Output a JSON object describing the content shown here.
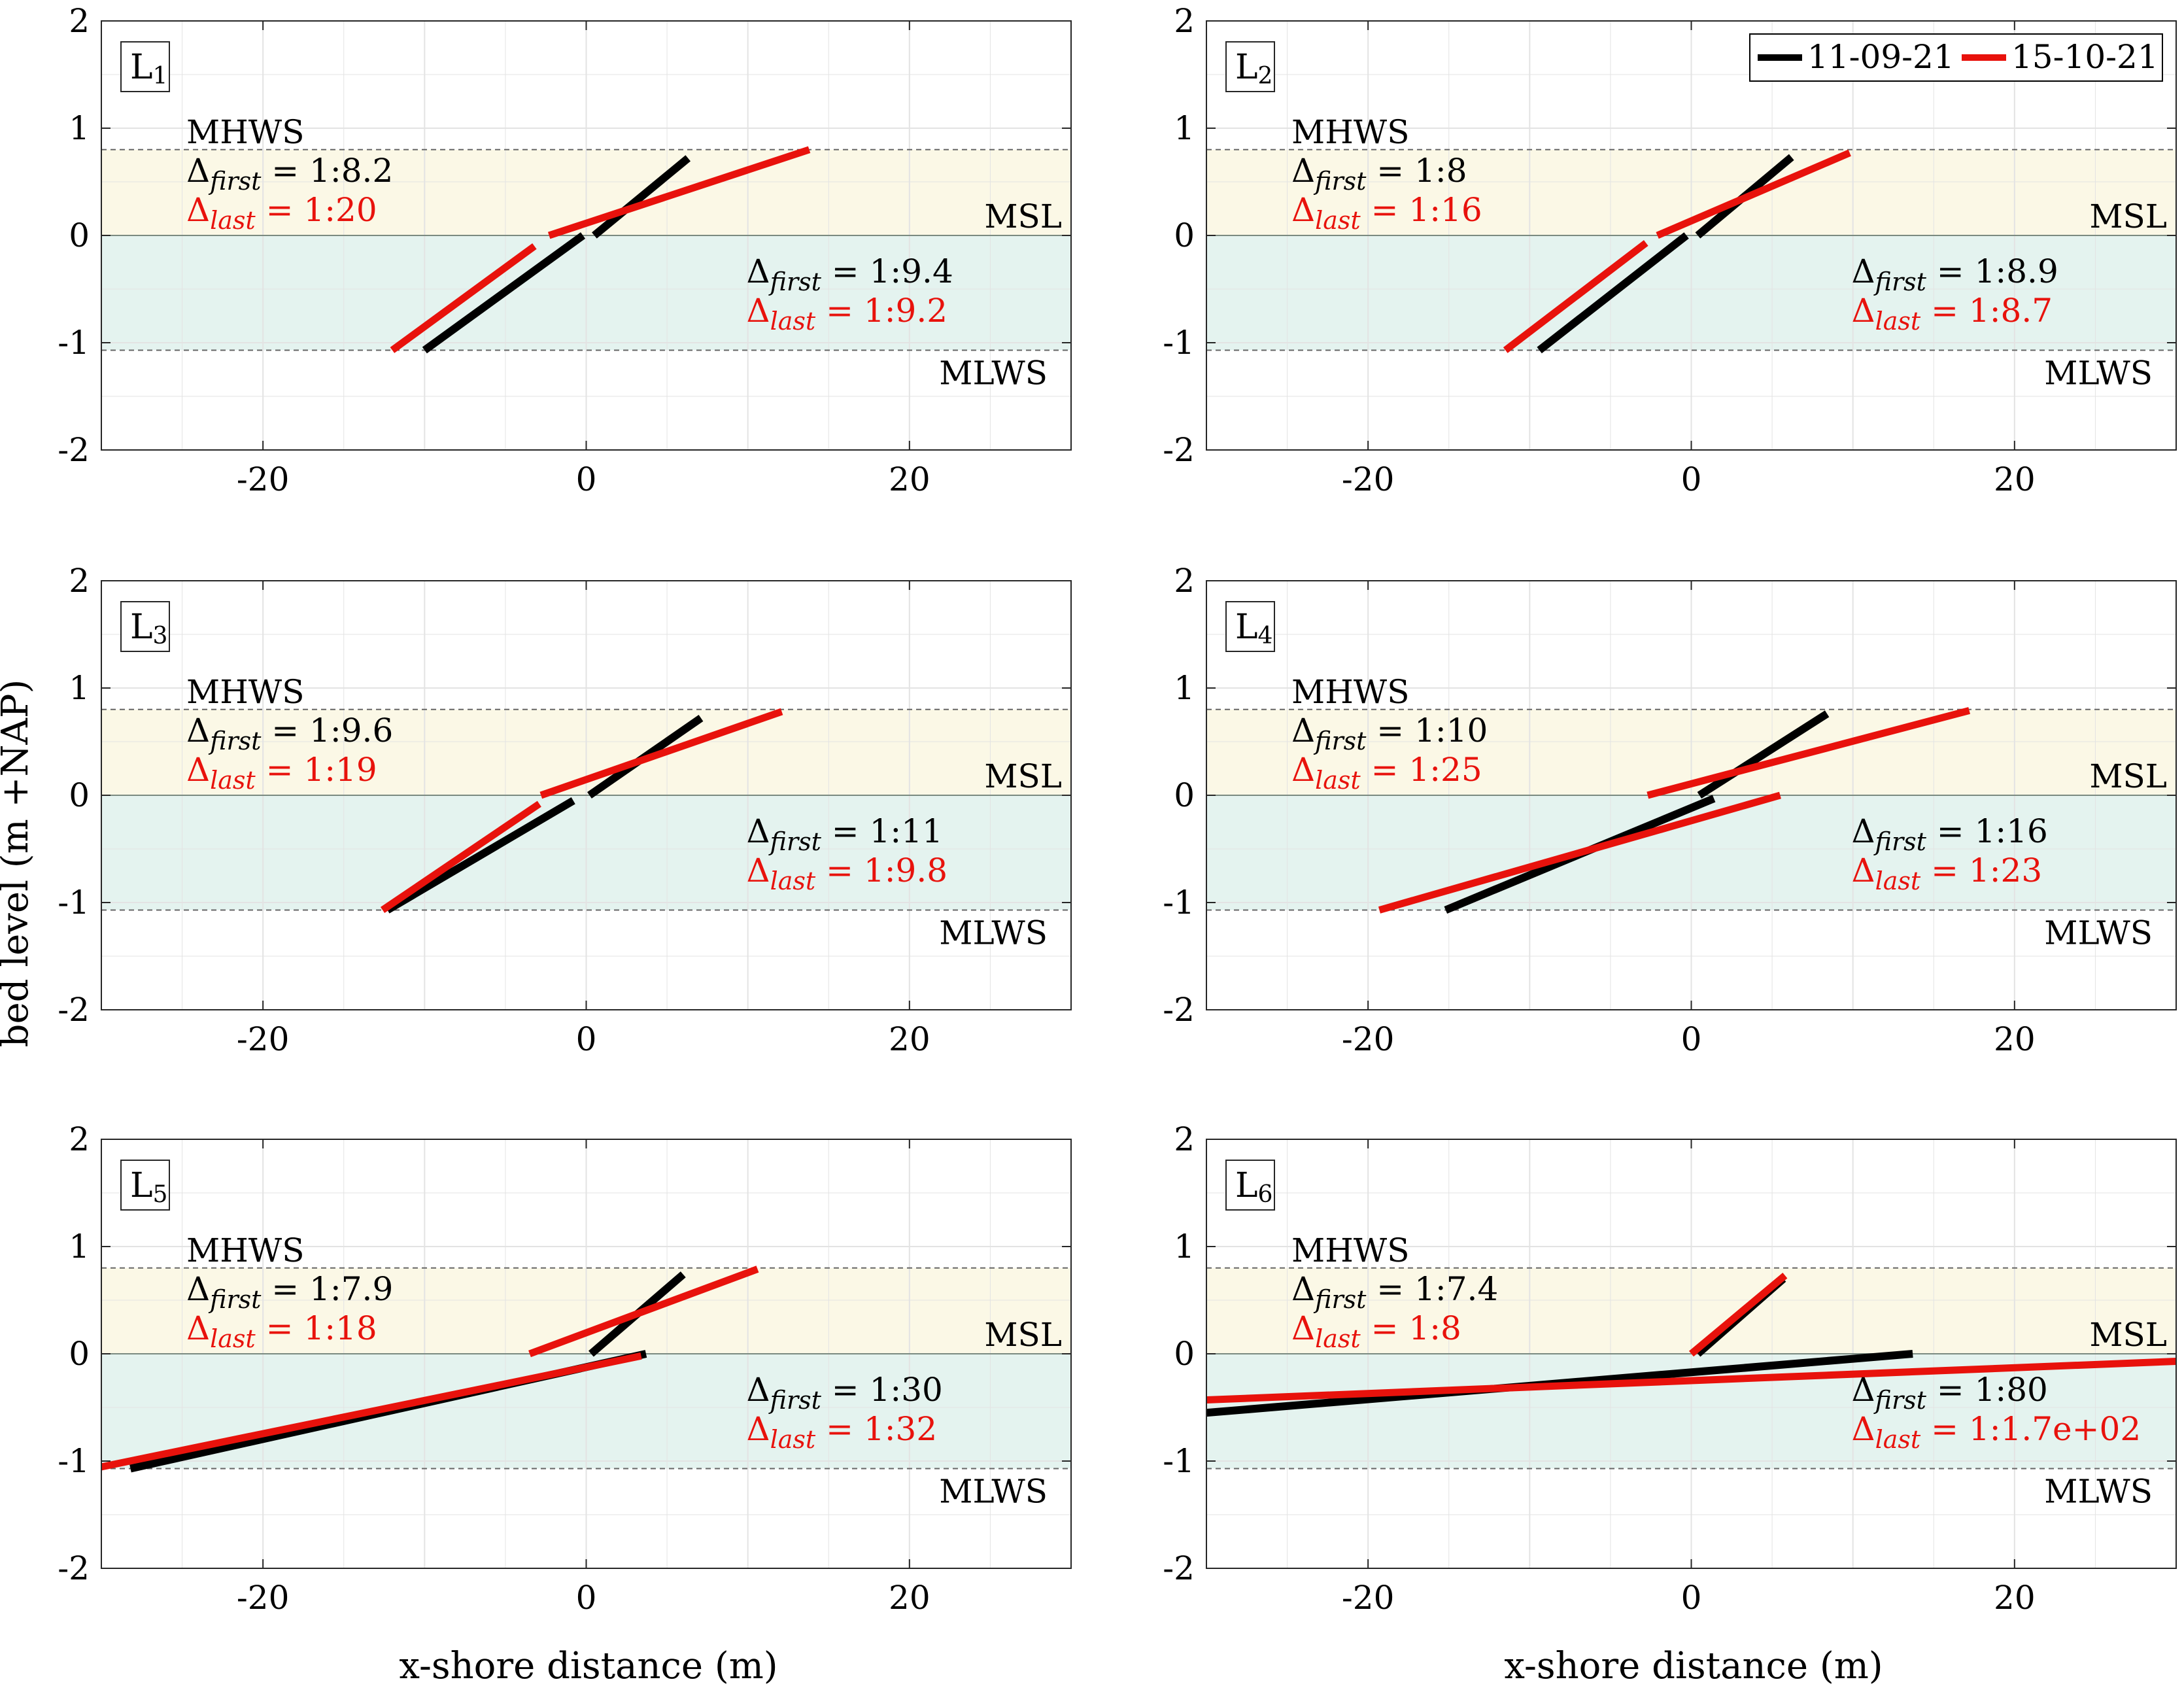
{
  "chart_data": {
    "type": "line",
    "xlabel": "x-shore distance (m)",
    "ylabel": "bed level (m +NAP)",
    "xlim": [
      -30,
      30
    ],
    "ylim": [
      -2,
      2
    ],
    "xticks": [
      -20,
      0,
      20
    ],
    "yticks": [
      -2,
      -1,
      0,
      1,
      2
    ],
    "grid": true,
    "legend": {
      "placement": "top-right of panel L2",
      "entries": [
        {
          "label": "11-09-21",
          "color": "#000000"
        },
        {
          "label": "15-10-21",
          "color": "#e8120c"
        }
      ]
    },
    "reference_levels": {
      "MHWS": {
        "label": "MHWS",
        "value": 0.8
      },
      "MSL": {
        "label": "MSL",
        "value": 0
      },
      "MLWS": {
        "label": "MLWS",
        "value": -1.07
      }
    },
    "colors": {
      "first": "#000000",
      "last": "#e8120c",
      "upper_band": "#fbf8e6",
      "lower_band": "#e4f3ef",
      "grid": "#e3e3e3"
    },
    "panels": [
      {
        "label": "L",
        "sub": "1",
        "upper": {
          "first": "1:8.2",
          "last": "1:20"
        },
        "lower": {
          "first": "1:9.4",
          "last": "1:9.2"
        },
        "series": [
          {
            "date": "11-09-21",
            "segment": "upper",
            "x": [
              0.5,
              6.3
            ],
            "y": [
              0.0,
              0.72
            ]
          },
          {
            "date": "15-10-21",
            "segment": "upper",
            "x": [
              -2.3,
              13.8
            ],
            "y": [
              0.0,
              0.8
            ]
          },
          {
            "date": "11-09-21",
            "segment": "lower",
            "x": [
              -10,
              -0.2
            ],
            "y": [
              -1.07,
              0.0
            ]
          },
          {
            "date": "15-10-21",
            "segment": "lower",
            "x": [
              -12,
              -3.2
            ],
            "y": [
              -1.07,
              -0.1
            ]
          }
        ]
      },
      {
        "label": "L",
        "sub": "2",
        "upper": {
          "first": "1:8",
          "last": "1:16"
        },
        "lower": {
          "first": "1:8.9",
          "last": "1:8.7"
        },
        "series": [
          {
            "date": "11-09-21",
            "segment": "upper",
            "x": [
              0.4,
              6.2
            ],
            "y": [
              0.0,
              0.73
            ]
          },
          {
            "date": "15-10-21",
            "segment": "upper",
            "x": [
              -2.1,
              9.8
            ],
            "y": [
              0.0,
              0.77
            ]
          },
          {
            "date": "11-09-21",
            "segment": "lower",
            "x": [
              -9.4,
              -0.3
            ],
            "y": [
              -1.07,
              0.0
            ]
          },
          {
            "date": "15-10-21",
            "segment": "lower",
            "x": [
              -11.5,
              -2.8
            ],
            "y": [
              -1.07,
              -0.07
            ]
          }
        ]
      },
      {
        "label": "L",
        "sub": "3",
        "upper": {
          "first": "1:9.6",
          "last": "1:19"
        },
        "lower": {
          "first": "1:11",
          "last": "1:9.8"
        },
        "series": [
          {
            "date": "11-09-21",
            "segment": "upper",
            "x": [
              0.2,
              7.1
            ],
            "y": [
              0.0,
              0.72
            ]
          },
          {
            "date": "15-10-21",
            "segment": "upper",
            "x": [
              -2.8,
              12.1
            ],
            "y": [
              0.0,
              0.78
            ]
          },
          {
            "date": "11-09-21",
            "segment": "lower",
            "x": [
              -12.3,
              -0.8
            ],
            "y": [
              -1.07,
              -0.05
            ]
          },
          {
            "date": "15-10-21",
            "segment": "lower",
            "x": [
              -12.6,
              -2.9
            ],
            "y": [
              -1.07,
              -0.08
            ]
          }
        ]
      },
      {
        "label": "L",
        "sub": "4",
        "upper": {
          "first": "1:10",
          "last": "1:25"
        },
        "lower": {
          "first": "1:16",
          "last": "1:23"
        },
        "series": [
          {
            "date": "11-09-21",
            "segment": "upper",
            "x": [
              0.5,
              8.4
            ],
            "y": [
              0.0,
              0.76
            ]
          },
          {
            "date": "15-10-21",
            "segment": "upper",
            "x": [
              -2.7,
              17.2
            ],
            "y": [
              0.0,
              0.79
            ]
          },
          {
            "date": "11-09-21",
            "segment": "lower",
            "x": [
              -15.2,
              1.4
            ],
            "y": [
              -1.07,
              -0.03
            ]
          },
          {
            "date": "15-10-21",
            "segment": "lower",
            "x": [
              -19.3,
              5.5
            ],
            "y": [
              -1.07,
              0.0
            ]
          }
        ]
      },
      {
        "label": "L",
        "sub": "5",
        "upper": {
          "first": "1:7.9",
          "last": "1:18"
        },
        "lower": {
          "first": "1:30",
          "last": "1:32"
        },
        "series": [
          {
            "date": "11-09-21",
            "segment": "upper",
            "x": [
              0.3,
              6.0
            ],
            "y": [
              0.0,
              0.74
            ]
          },
          {
            "date": "15-10-21",
            "segment": "upper",
            "x": [
              -3.5,
              10.6
            ],
            "y": [
              0.0,
              0.79
            ]
          },
          {
            "date": "11-09-21",
            "segment": "lower",
            "x": [
              -28.2,
              3.7
            ],
            "y": [
              -1.07,
              0.0
            ]
          },
          {
            "date": "15-10-21",
            "segment": "lower",
            "x": [
              -30.5,
              3.4
            ],
            "y": [
              -1.07,
              -0.02
            ]
          }
        ]
      },
      {
        "label": "L",
        "sub": "6",
        "upper": {
          "first": "1:7.4",
          "last": "1:8"
        },
        "lower": {
          "first": "1:80",
          "last": "1:1.7e+02"
        },
        "series": [
          {
            "date": "11-09-21",
            "segment": "upper",
            "x": [
              0.4,
              5.7
            ],
            "y": [
              0.0,
              0.7
            ]
          },
          {
            "date": "15-10-21",
            "segment": "upper",
            "x": [
              0.0,
              5.8
            ],
            "y": [
              0.0,
              0.73
            ]
          },
          {
            "date": "11-09-21",
            "segment": "lower",
            "x": [
              -30.0,
              13.7
            ],
            "y": [
              -0.55,
              0.0
            ]
          },
          {
            "date": "15-10-21",
            "segment": "lower",
            "x": [
              -30.0,
              30.0
            ],
            "y": [
              -0.43,
              -0.07
            ]
          }
        ]
      }
    ]
  }
}
